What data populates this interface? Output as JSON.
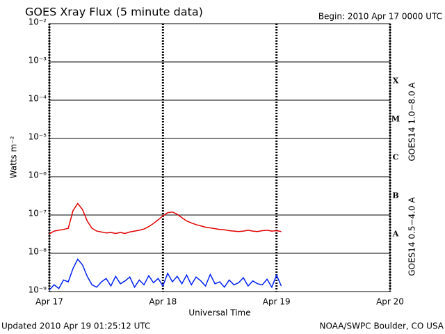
{
  "chart_data": {
    "type": "line",
    "title": "GOES Xray Flux (5 minute data)",
    "subtitle": "Begin:  2010 Apr 17 0000 UTC",
    "x_label": "Universal Time",
    "y_label": "Watts m⁻²",
    "footer_left": "Updated 2010 Apr 19 01:25:12 UTC",
    "footer_right": "NOAA/SWPC Boulder, CO USA",
    "class_labels": [
      "X",
      "M",
      "C",
      "B",
      "A"
    ],
    "log_y": true,
    "grid": true,
    "xlim": [
      0,
      72
    ],
    "xticks": [
      {
        "value": 0,
        "label": "Apr 17"
      },
      {
        "value": 24,
        "label": "Apr 18"
      },
      {
        "value": 48,
        "label": "Apr 19"
      },
      {
        "value": 72,
        "label": "Apr 20"
      }
    ],
    "ylim": [
      1e-09,
      0.01
    ],
    "yticks": [
      {
        "value": 1e-09,
        "label": "10⁻⁹"
      },
      {
        "value": 1e-08,
        "label": "10⁻⁸"
      },
      {
        "value": 1e-07,
        "label": "10⁻⁷"
      },
      {
        "value": 1e-06,
        "label": "10⁻⁶"
      },
      {
        "value": 1e-05,
        "label": "10⁻⁵"
      },
      {
        "value": 0.0001,
        "label": "10⁻⁴"
      },
      {
        "value": 0.001,
        "label": "10⁻³"
      },
      {
        "value": 0.01,
        "label": "10⁻²"
      }
    ],
    "x": [
      0,
      1,
      2,
      3,
      4,
      5,
      6,
      7,
      8,
      9,
      10,
      11,
      12,
      13,
      14,
      15,
      16,
      17,
      18,
      19,
      20,
      21,
      22,
      23,
      24,
      25,
      26,
      27,
      28,
      29,
      30,
      31,
      32,
      33,
      34,
      35,
      36,
      37,
      38,
      39,
      40,
      41,
      42,
      43,
      44,
      45,
      46,
      47,
      48,
      49
    ],
    "series": [
      {
        "name": "GOES14 1.0−8.0 A",
        "color": "#e00000",
        "values": [
          3.2e-08,
          3.8e-08,
          4e-08,
          4.2e-08,
          4.5e-08,
          1.3e-07,
          2e-07,
          1.4e-07,
          7e-08,
          4.5e-08,
          3.8e-08,
          3.6e-08,
          3.4e-08,
          3.5e-08,
          3.3e-08,
          3.5e-08,
          3.3e-08,
          3.6e-08,
          3.8e-08,
          4e-08,
          4.3e-08,
          5e-08,
          6e-08,
          7.5e-08,
          9.5e-08,
          1.15e-07,
          1.2e-07,
          1.05e-07,
          8.5e-08,
          7e-08,
          6.2e-08,
          5.6e-08,
          5.2e-08,
          4.8e-08,
          4.6e-08,
          4.4e-08,
          4.2e-08,
          4.1e-08,
          3.9e-08,
          3.8e-08,
          3.7e-08,
          3.8e-08,
          4e-08,
          3.8e-08,
          3.7e-08,
          3.9e-08,
          4e-08,
          3.8e-08,
          3.9e-08,
          3.7e-08
        ]
      },
      {
        "name": "GOES14 0.5−4.0 A",
        "color": "#0020f0",
        "values": [
          1.1e-09,
          1.5e-09,
          1.2e-09,
          2e-09,
          1.8e-09,
          4e-09,
          7e-09,
          5e-09,
          2.5e-09,
          1.5e-09,
          1.3e-09,
          1.8e-09,
          2.2e-09,
          1.4e-09,
          2.5e-09,
          1.6e-09,
          1.9e-09,
          2.4e-09,
          1.3e-09,
          2e-09,
          1.5e-09,
          2.6e-09,
          1.7e-09,
          2.2e-09,
          1.4e-09,
          3e-09,
          1.8e-09,
          2.5e-09,
          1.6e-09,
          2.7e-09,
          1.5e-09,
          2.4e-09,
          1.9e-09,
          1.4e-09,
          2.8e-09,
          1.6e-09,
          1.8e-09,
          1.3e-09,
          2e-09,
          1.5e-09,
          1.7e-09,
          2.3e-09,
          1.4e-09,
          1.9e-09,
          1.6e-09,
          1.5e-09,
          2.1e-09,
          1.3e-09,
          2.7e-09,
          1.4e-09
        ]
      }
    ]
  }
}
